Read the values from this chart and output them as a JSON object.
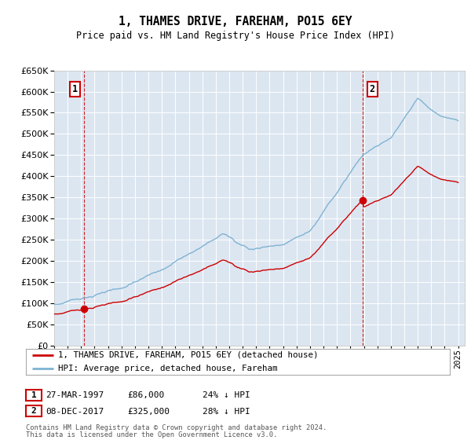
{
  "title": "1, THAMES DRIVE, FAREHAM, PO15 6EY",
  "subtitle": "Price paid vs. HM Land Registry's House Price Index (HPI)",
  "background_color": "#dce6f1",
  "plot_bg_color": "#dce6f1",
  "hpi_color": "#7fb3d3",
  "price_color": "#cc0000",
  "vline_color": "#cc0000",
  "ylim": [
    0,
    650000
  ],
  "yticks": [
    0,
    50000,
    100000,
    150000,
    200000,
    250000,
    300000,
    350000,
    400000,
    450000,
    500000,
    550000,
    600000,
    650000
  ],
  "xlim_start": 1995.0,
  "xlim_end": 2025.5,
  "transaction1_x": 1997.23,
  "transaction1_y": 86000,
  "transaction1_label": "1",
  "transaction1_date": "27-MAR-1997",
  "transaction1_price": "£86,000",
  "transaction1_hpi": "24% ↓ HPI",
  "transaction2_x": 2017.93,
  "transaction2_y": 325000,
  "transaction2_label": "2",
  "transaction2_date": "08-DEC-2017",
  "transaction2_price": "£325,000",
  "transaction2_hpi": "28% ↓ HPI",
  "legend_line1": "1, THAMES DRIVE, FAREHAM, PO15 6EY (detached house)",
  "legend_line2": "HPI: Average price, detached house, Fareham",
  "footer1": "Contains HM Land Registry data © Crown copyright and database right 2024.",
  "footer2": "This data is licensed under the Open Government Licence v3.0."
}
